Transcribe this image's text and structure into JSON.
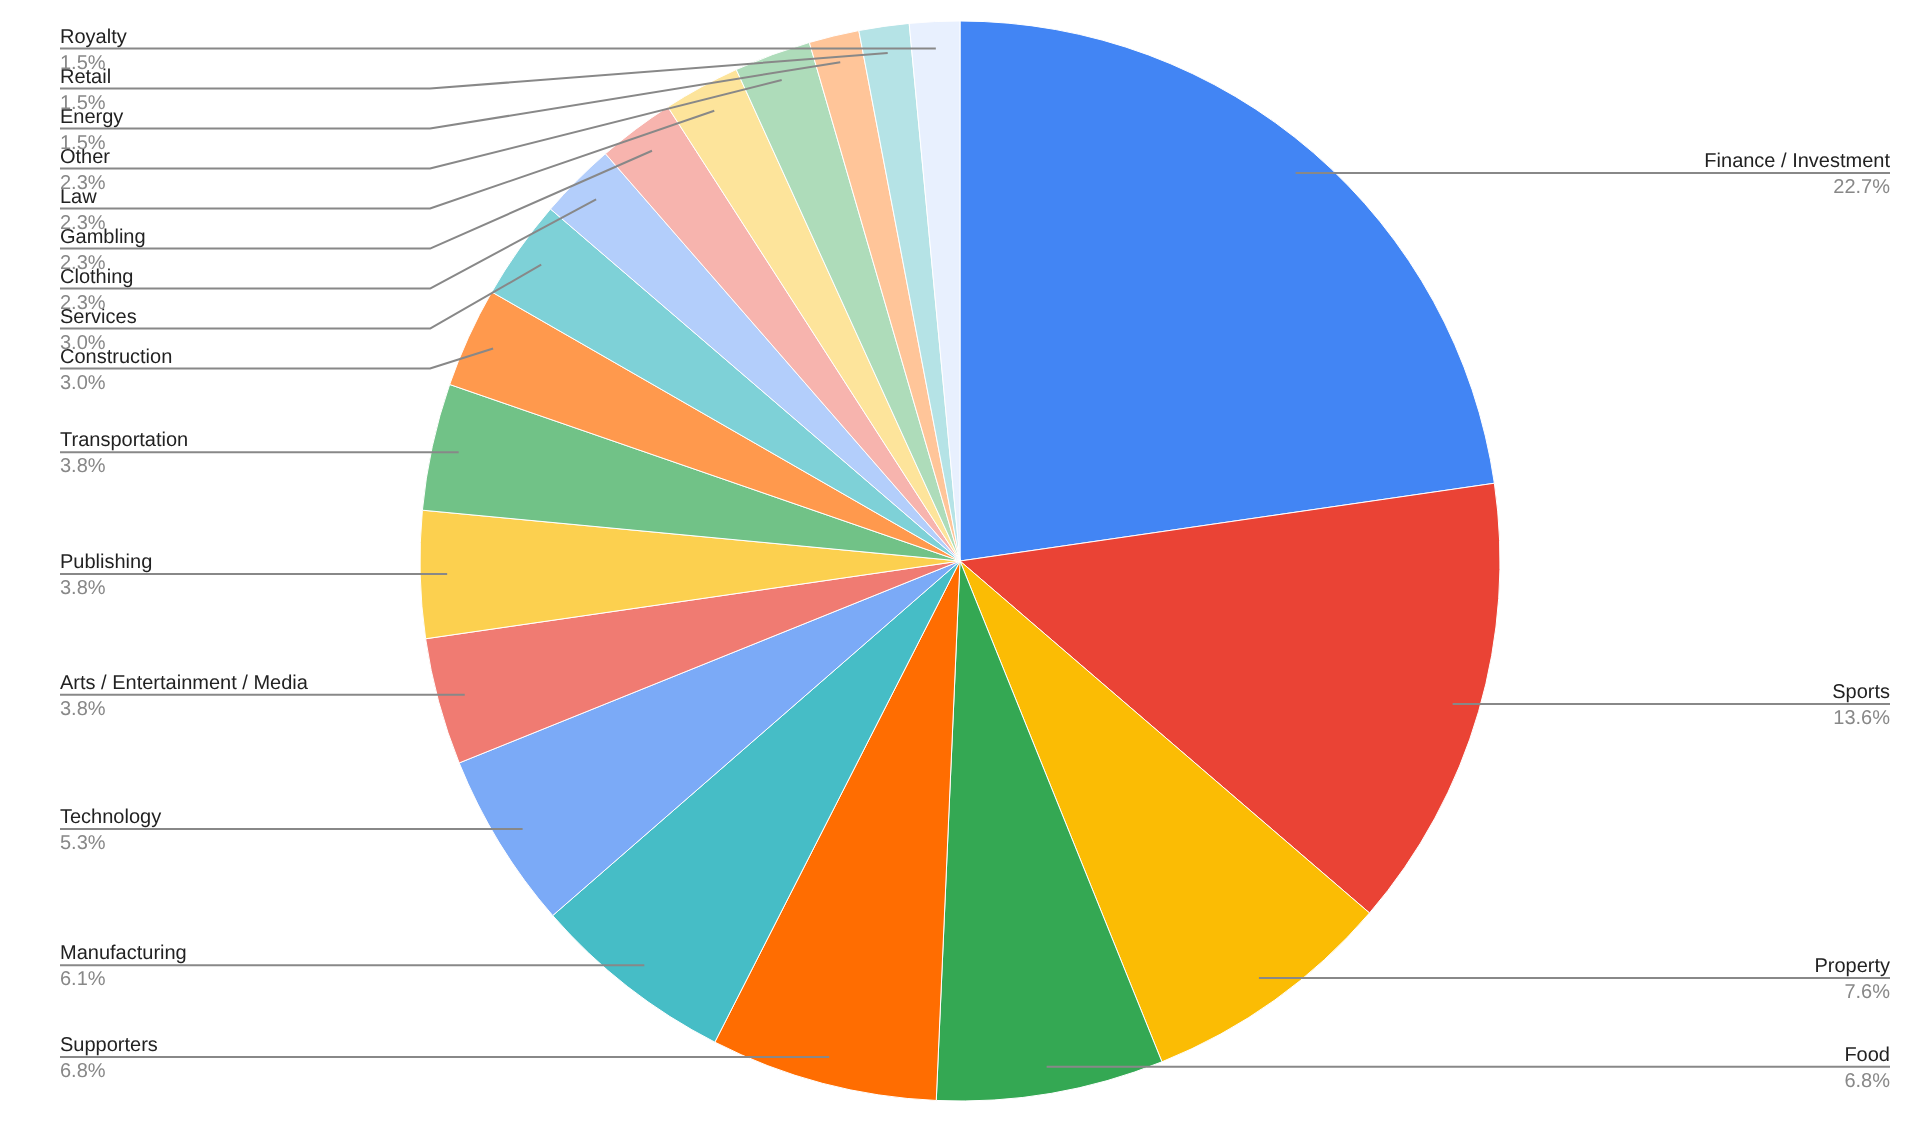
{
  "chart_data": {
    "type": "pie",
    "categories": [
      "Finance / Investment",
      "Sports",
      "Property",
      "Food",
      "Supporters",
      "Manufacturing",
      "Technology",
      "Arts / Entertainment / Media",
      "Publishing",
      "Transportation",
      "Construction",
      "Services",
      "Clothing",
      "Gambling",
      "Law",
      "Other",
      "Energy",
      "Retail",
      "Royalty"
    ],
    "values": [
      22.7,
      13.6,
      7.6,
      6.8,
      6.8,
      6.1,
      5.3,
      3.8,
      3.8,
      3.8,
      3.0,
      3.0,
      2.3,
      2.3,
      2.3,
      2.3,
      1.5,
      1.5,
      1.5
    ],
    "colors": [
      "#4285f4",
      "#ea4335",
      "#fbbc04",
      "#34a853",
      "#ff6d01",
      "#46bdc6",
      "#7baaf7",
      "#f07b72",
      "#fcd04f",
      "#71c287",
      "#ff994d",
      "#7ed1d7",
      "#b3cefb",
      "#f7b4ae",
      "#fde49b",
      "#aedcba",
      "#ffc599",
      "#b5e3e6",
      "#e8f0fe"
    ],
    "value_labels": [
      "22.7%",
      "13.6%",
      "7.6%",
      "6.8%",
      "6.8%",
      "6.1%",
      "5.3%",
      "3.8%",
      "3.8%",
      "3.8%",
      "3.0%",
      "3.0%",
      "2.3%",
      "2.3%",
      "2.3%",
      "2.3%",
      "1.5%",
      "1.5%",
      "1.5%"
    ]
  }
}
